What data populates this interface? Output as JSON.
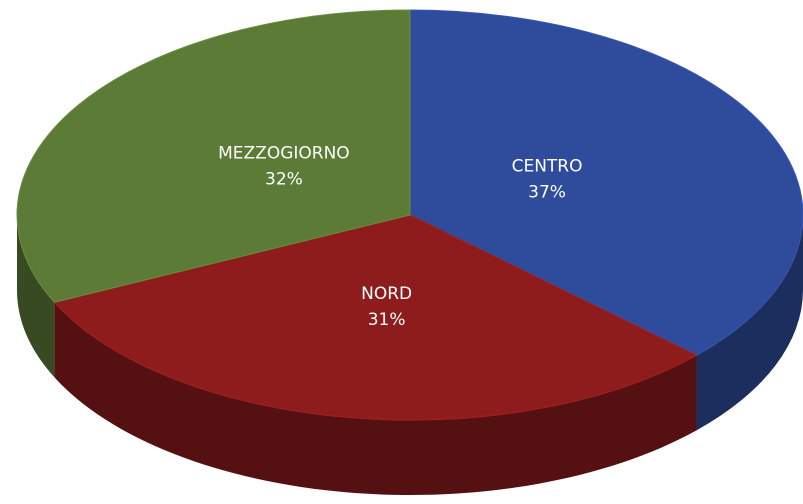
{
  "chart_data": {
    "type": "pie",
    "categories": [
      "CENTRO",
      "NORD",
      "MEZZOGIORNO"
    ],
    "values": [
      37,
      31,
      32
    ],
    "value_labels": [
      "37%",
      "31%",
      "32%"
    ],
    "colors": [
      "#2f4c9c",
      "#8e1c1c",
      "#5b7b37"
    ]
  }
}
